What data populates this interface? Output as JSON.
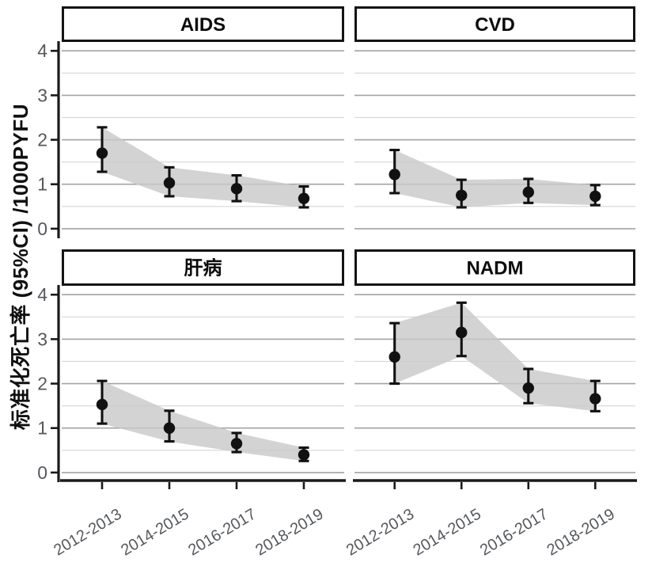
{
  "chart_data": {
    "type": "line",
    "subtype": "pointrange-with-ci-ribbon-facets",
    "title": "",
    "xlabel": "",
    "ylabel": "标准化死亡率 (95%CI) /1000PYFU",
    "categories": [
      "2012-2013",
      "2014-2015",
      "2016-2017",
      "2018-2019"
    ],
    "ylim": [
      -0.18,
      4.2
    ],
    "yticks": [
      0,
      1,
      2,
      3,
      4
    ],
    "minor_gridlines": [
      0.5,
      1.5,
      2.5,
      3.5
    ],
    "grid": "on",
    "legend": "none",
    "panels": [
      {
        "title": "AIDS",
        "row": 0,
        "col": 0,
        "estimates": [
          1.7,
          1.03,
          0.9,
          0.68
        ],
        "ci_lower": [
          1.28,
          0.73,
          0.62,
          0.48
        ],
        "ci_upper": [
          2.28,
          1.38,
          1.2,
          0.95
        ]
      },
      {
        "title": "CVD",
        "row": 0,
        "col": 1,
        "estimates": [
          1.22,
          0.75,
          0.82,
          0.73
        ],
        "ci_lower": [
          0.8,
          0.48,
          0.58,
          0.53
        ],
        "ci_upper": [
          1.77,
          1.1,
          1.12,
          0.98
        ]
      },
      {
        "title": "肝病",
        "row": 1,
        "col": 0,
        "estimates": [
          1.53,
          1.0,
          0.65,
          0.4
        ],
        "ci_lower": [
          1.1,
          0.7,
          0.46,
          0.26
        ],
        "ci_upper": [
          2.06,
          1.39,
          0.89,
          0.56
        ]
      },
      {
        "title": "NADM",
        "row": 1,
        "col": 1,
        "estimates": [
          2.6,
          3.15,
          1.9,
          1.66
        ],
        "ci_lower": [
          2.0,
          2.62,
          1.56,
          1.38
        ],
        "ci_upper": [
          3.36,
          3.82,
          2.33,
          2.06
        ]
      }
    ],
    "colors": {
      "point": "#111111",
      "errorbar": "#111111",
      "ribbon": "#c9c9c9",
      "grid_major": "#a3a3a3",
      "grid_minor": "#d6d6d6",
      "axis_line": "#1a1a1a",
      "tick_label": "#55585c",
      "strip_border": "#141414",
      "strip_background": "#ffffff",
      "strip_text": "#0b0b0b",
      "background": "#ffffff"
    }
  }
}
